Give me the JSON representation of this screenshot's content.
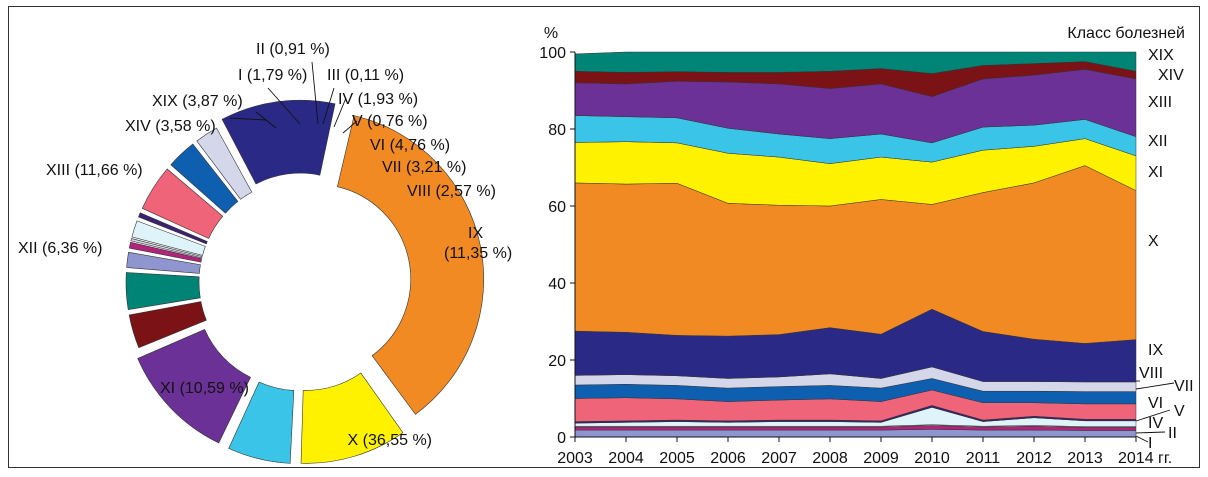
{
  "chart_data": [
    {
      "type": "pie",
      "variant": "exploded-donut",
      "slices": [
        {
          "label": "I (1,79 %)",
          "class": "I",
          "value": 1.79,
          "color": "#8f95cf"
        },
        {
          "label": "II (0,91 %)",
          "class": "II",
          "value": 0.91,
          "color": "#b0247a"
        },
        {
          "label": "III (0,11 %)",
          "class": "III",
          "value": 0.11,
          "color": "#d6dbe6"
        },
        {
          "label": "IV (1,93 %)",
          "class": "IV",
          "value": 1.93,
          "color": "#dff3fb"
        },
        {
          "label": "V (0,76 %)",
          "class": "V",
          "value": 0.76,
          "color": "#3a2171"
        },
        {
          "label": "VI (4,76 %)",
          "class": "VI",
          "value": 4.76,
          "color": "#f0647a"
        },
        {
          "label": "VII (3,21 %)",
          "class": "VII",
          "value": 3.21,
          "color": "#0f5fb0"
        },
        {
          "label": "VIII (2,57 %)",
          "class": "VIII",
          "value": 2.57,
          "color": "#d4d6ea"
        },
        {
          "label": "IX (11,35 %)",
          "class": "IX",
          "value": 11.35,
          "color": "#2a2a86"
        },
        {
          "label": "X (36,55 %)",
          "class": "X",
          "value": 36.55,
          "color": "#f18a22"
        },
        {
          "label": "XI (10,59 %)",
          "class": "XI",
          "value": 10.59,
          "color": "#fff200"
        },
        {
          "label": "XII (6,36 %)",
          "class": "XII",
          "value": 6.36,
          "color": "#39c4e8"
        },
        {
          "label": "XIII (11,66 %)",
          "class": "XIII",
          "value": 11.66,
          "color": "#6c3196"
        },
        {
          "label": "XIV (3,58 %)",
          "class": "XIV",
          "value": 3.58,
          "color": "#7b1216"
        },
        {
          "label": "XIX (3,87 %)",
          "class": "XIX",
          "value": 3.87,
          "color": "#008476"
        }
      ]
    },
    {
      "type": "area",
      "stacked": true,
      "percent": true,
      "ylabel": "%",
      "legend_title": "Класс болезней",
      "x": [
        2003,
        2004,
        2005,
        2006,
        2007,
        2008,
        2009,
        2010,
        2011,
        2012,
        2013,
        2014
      ],
      "x_tick_labels": [
        "2003",
        "2004",
        "2005",
        "2006",
        "2007",
        "2008",
        "2009",
        "2010",
        "2011",
        "2012",
        "2013",
        "2014 гг."
      ],
      "ylim": [
        0,
        100
      ],
      "yticks": [
        0,
        20,
        40,
        60,
        80,
        100
      ],
      "series": [
        {
          "name": "I",
          "color": "#8f95cf",
          "values": [
            1.8,
            1.8,
            1.8,
            1.8,
            1.8,
            1.8,
            1.8,
            2.0,
            1.8,
            1.8,
            1.7,
            1.7
          ]
        },
        {
          "name": "II",
          "color": "#b0247a",
          "values": [
            0.8,
            0.8,
            0.8,
            0.8,
            0.8,
            0.8,
            0.8,
            1.0,
            0.8,
            1.0,
            0.8,
            0.8
          ]
        },
        {
          "name": "III",
          "color": "#d6dbe6",
          "values": [
            0.2,
            0.2,
            0.2,
            0.2,
            0.2,
            0.2,
            0.2,
            0.2,
            0.2,
            0.2,
            0.2,
            0.2
          ]
        },
        {
          "name": "IV",
          "color": "#dff3fb",
          "values": [
            0.8,
            1.0,
            1.2,
            1.0,
            1.2,
            1.2,
            1.0,
            4.5,
            1.2,
            2.0,
            1.5,
            1.5
          ]
        },
        {
          "name": "V",
          "color": "#3a2171",
          "values": [
            0.4,
            0.4,
            0.4,
            0.4,
            0.4,
            0.4,
            0.4,
            0.5,
            0.4,
            0.4,
            0.4,
            0.4
          ]
        },
        {
          "name": "VI",
          "color": "#f0647a",
          "values": [
            6.0,
            6.0,
            5.5,
            5.0,
            5.2,
            5.5,
            5.0,
            4.0,
            4.5,
            3.5,
            4.0,
            4.0
          ]
        },
        {
          "name": "VII",
          "color": "#0f5fb0",
          "values": [
            3.5,
            3.5,
            3.5,
            3.5,
            3.5,
            3.5,
            3.5,
            3.0,
            3.0,
            3.0,
            3.2,
            3.2
          ]
        },
        {
          "name": "VIII",
          "color": "#d4d6ea",
          "values": [
            2.5,
            2.5,
            2.5,
            2.5,
            2.5,
            3.0,
            2.5,
            3.0,
            2.5,
            2.5,
            2.5,
            2.5
          ]
        },
        {
          "name": "IX",
          "color": "#2a2a86",
          "values": [
            11.5,
            11.0,
            10.5,
            11.0,
            11.0,
            12.0,
            11.5,
            15.0,
            13.0,
            11.0,
            10.0,
            11.0
          ]
        },
        {
          "name": "X",
          "color": "#f18a22",
          "values": [
            38.5,
            38.5,
            39.5,
            34.5,
            33.6,
            31.6,
            35.0,
            27.2,
            36.1,
            40.6,
            46.2,
            38.7
          ]
        },
        {
          "name": "XI",
          "color": "#fff200",
          "values": [
            10.5,
            11.0,
            10.5,
            13.0,
            12.5,
            11.0,
            11.0,
            11.0,
            11.0,
            9.5,
            7.0,
            9.0
          ]
        },
        {
          "name": "XII",
          "color": "#39c4e8",
          "values": [
            7.0,
            6.5,
            6.5,
            6.5,
            6.0,
            6.5,
            6.0,
            5.0,
            6.0,
            5.5,
            5.0,
            5.0
          ]
        },
        {
          "name": "XIII",
          "color": "#6c3196",
          "values": [
            8.5,
            8.5,
            9.5,
            12.0,
            13.0,
            13.0,
            13.0,
            12.0,
            12.5,
            13.0,
            13.0,
            15.0
          ]
        },
        {
          "name": "XIV",
          "color": "#7b1216",
          "values": [
            3.0,
            3.0,
            2.5,
            2.5,
            3.0,
            4.5,
            4.0,
            6.0,
            3.5,
            3.0,
            2.0,
            2.0
          ]
        },
        {
          "name": "XIX",
          "color": "#008476",
          "values": [
            4.5,
            5.3,
            5.1,
            5.3,
            6.3,
            5.0,
            4.3,
            5.6,
            3.5,
            4.0,
            3.0,
            5.0
          ]
        }
      ],
      "right_labels": [
        "XIX",
        "XIV",
        "XIII",
        "XII",
        "XI",
        "X",
        "IX",
        "VIII",
        "VII",
        "VI",
        "V",
        "IV",
        "II",
        "I"
      ]
    }
  ]
}
